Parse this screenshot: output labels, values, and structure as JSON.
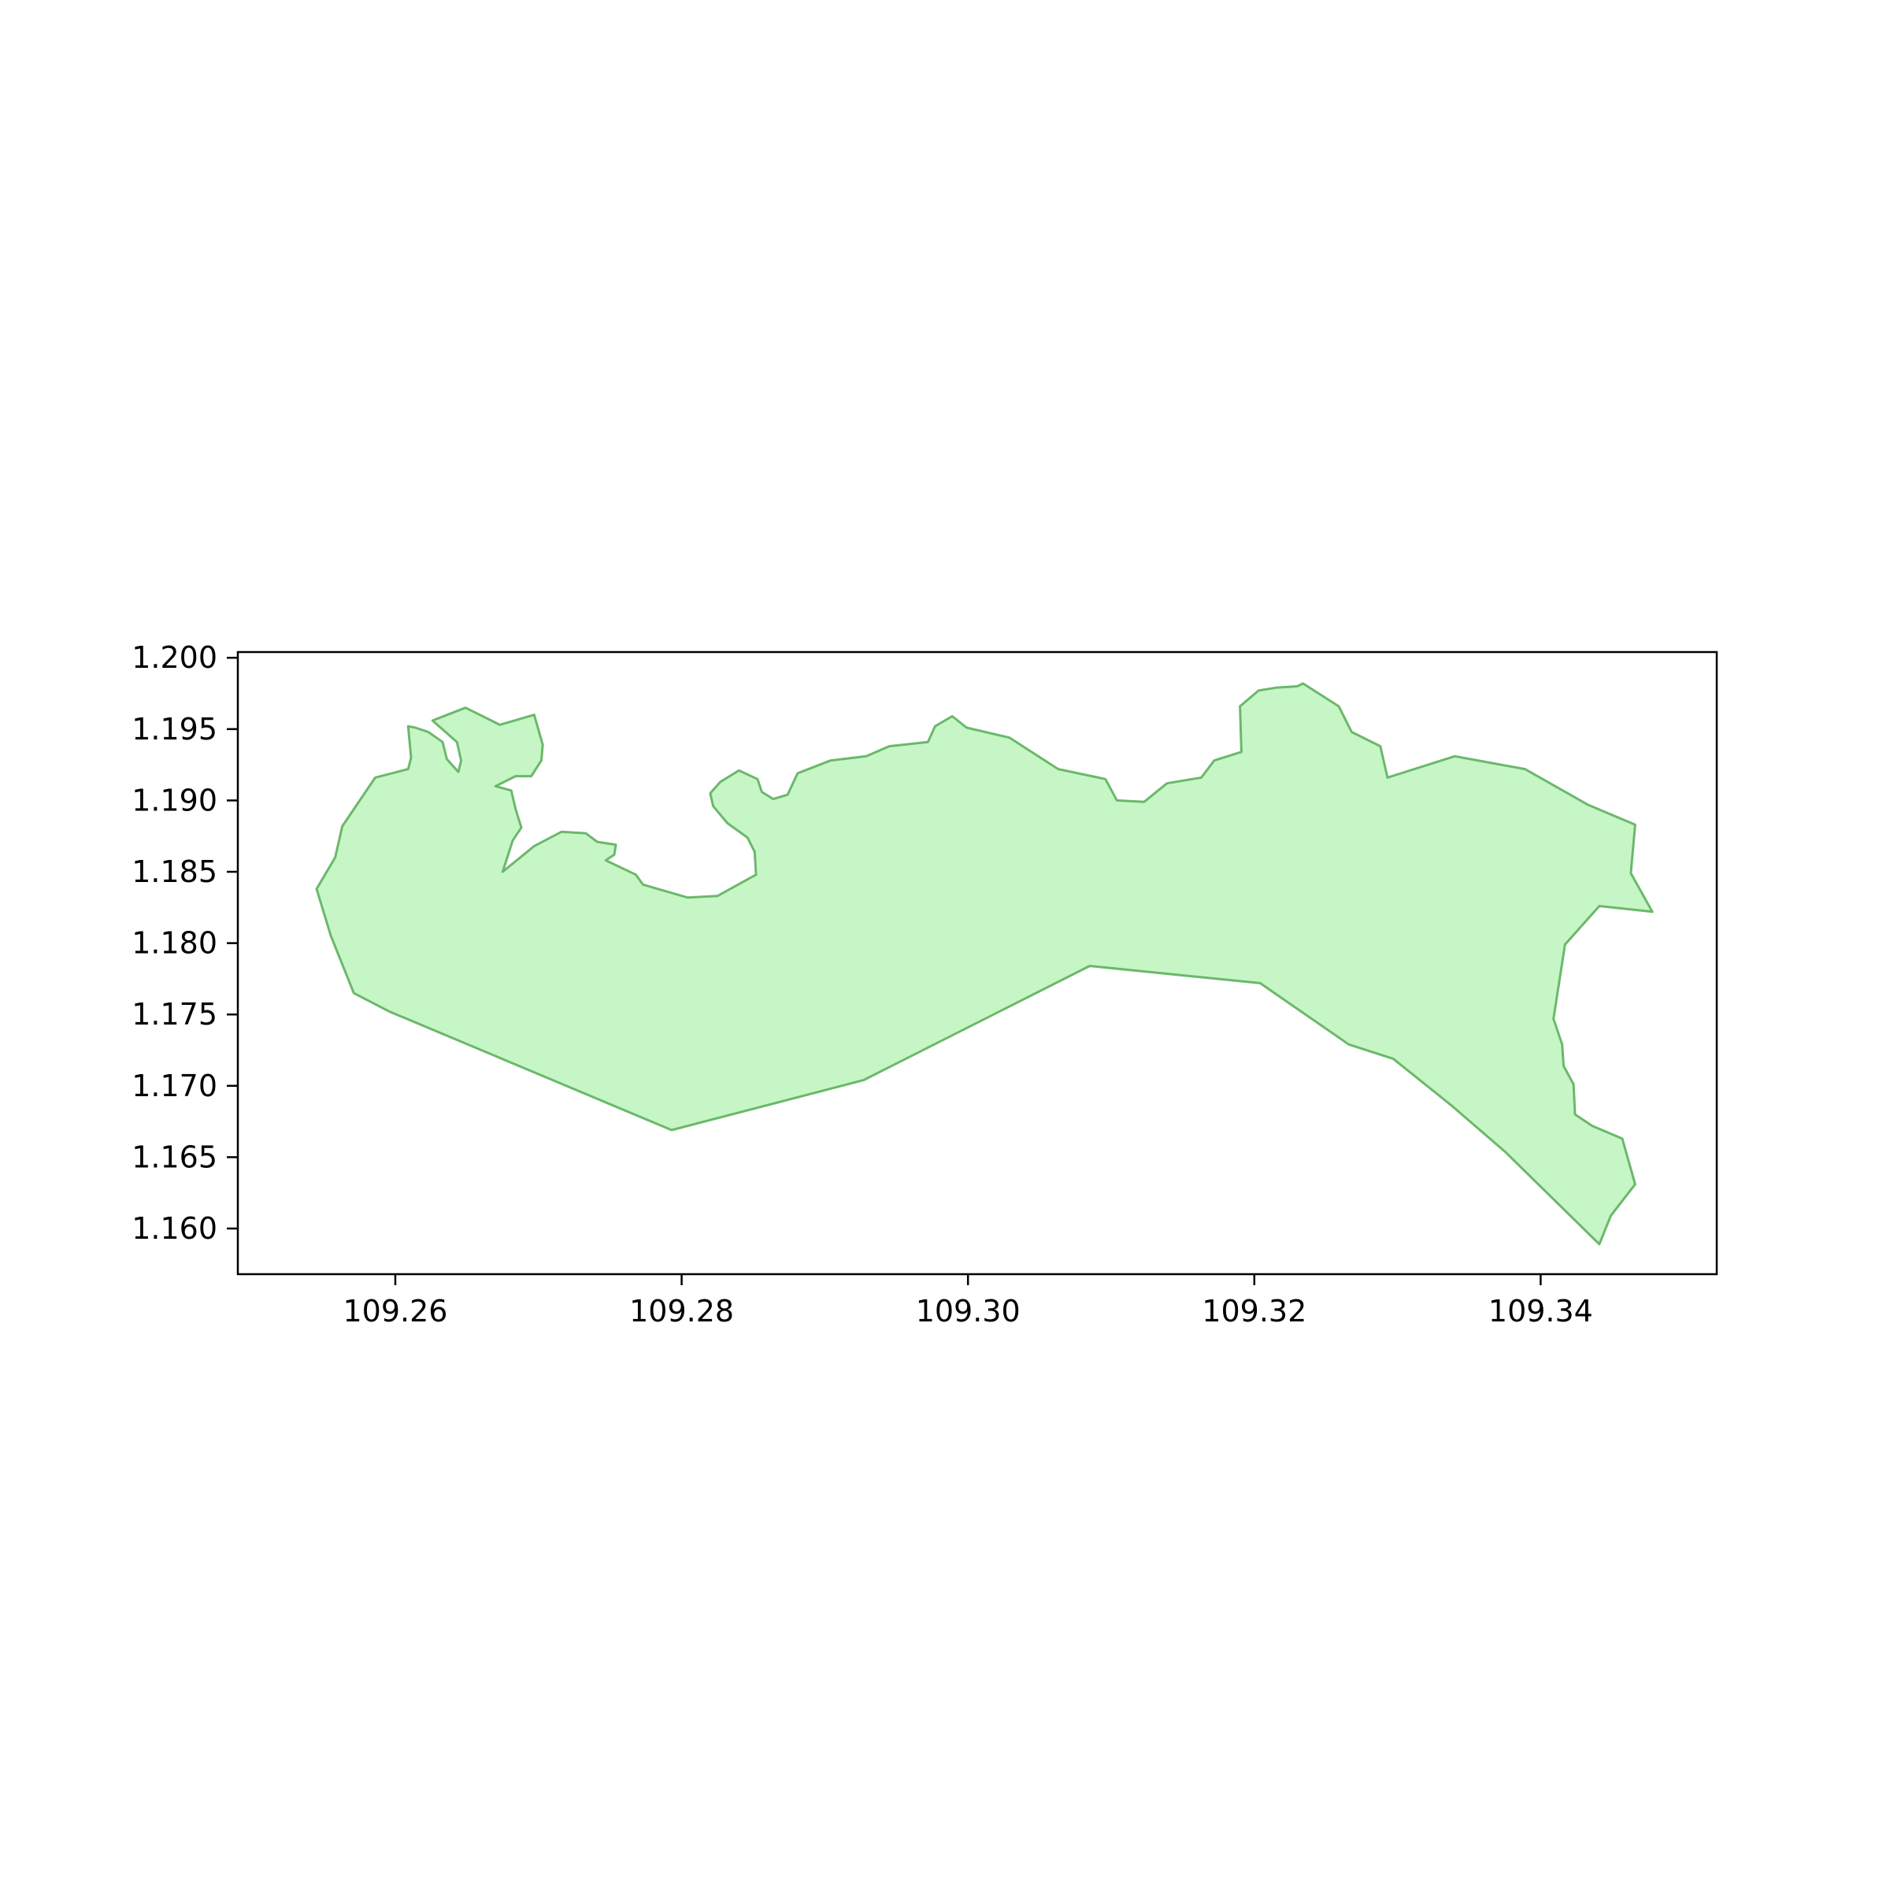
{
  "chart_data": {
    "type": "map",
    "title": "",
    "xlabel": "",
    "ylabel": "",
    "xlim": [
      109.249,
      109.3523
    ],
    "ylim": [
      1.1568,
      1.2004
    ],
    "grid": false,
    "legend": "none",
    "fill_color": "#c6f6c6",
    "edge_color": "#6bb86b",
    "x_ticks": [
      {
        "value": 109.26,
        "label": "109.26"
      },
      {
        "value": 109.28,
        "label": "109.28"
      },
      {
        "value": 109.3,
        "label": "109.30"
      },
      {
        "value": 109.32,
        "label": "109.32"
      },
      {
        "value": 109.34,
        "label": "109.34"
      }
    ],
    "y_ticks": [
      {
        "value": 1.16,
        "label": "1.160"
      },
      {
        "value": 1.165,
        "label": "1.165"
      },
      {
        "value": 1.17,
        "label": "1.170"
      },
      {
        "value": 1.175,
        "label": "1.175"
      },
      {
        "value": 1.18,
        "label": "1.180"
      },
      {
        "value": 1.185,
        "label": "1.185"
      },
      {
        "value": 1.19,
        "label": "1.190"
      },
      {
        "value": 1.195,
        "label": "1.195"
      },
      {
        "value": 1.2,
        "label": "1.200"
      }
    ],
    "polygon": [
      [
        109.2545,
        1.1838
      ],
      [
        109.2555,
        1.1805
      ],
      [
        109.2571,
        1.1765
      ],
      [
        109.2596,
        1.1752
      ],
      [
        109.2793,
        1.1669
      ],
      [
        109.2927,
        1.1704
      ],
      [
        109.3085,
        1.1784
      ],
      [
        109.3204,
        1.1772
      ],
      [
        109.3266,
        1.1729
      ],
      [
        109.3297,
        1.1719
      ],
      [
        109.3338,
        1.1686
      ],
      [
        109.3375,
        1.1654
      ],
      [
        109.3441,
        1.1589
      ],
      [
        109.3449,
        1.1609
      ],
      [
        109.3466,
        1.1631
      ],
      [
        109.3457,
        1.1663
      ],
      [
        109.3436,
        1.1672
      ],
      [
        109.3424,
        1.168
      ],
      [
        109.3423,
        1.1701
      ],
      [
        109.3416,
        1.1714
      ],
      [
        109.3415,
        1.1729
      ],
      [
        109.3409,
        1.1747
      ],
      [
        109.3417,
        1.1799
      ],
      [
        109.3441,
        1.1826
      ],
      [
        109.3478,
        1.1822
      ],
      [
        109.3463,
        1.1849
      ],
      [
        109.3466,
        1.1883
      ],
      [
        109.3433,
        1.1897
      ],
      [
        109.3389,
        1.1922
      ],
      [
        109.334,
        1.1931
      ],
      [
        109.3293,
        1.1916
      ],
      [
        109.3288,
        1.1938
      ],
      [
        109.3268,
        1.1948
      ],
      [
        109.3259,
        1.1966
      ],
      [
        109.3234,
        1.1982
      ],
      [
        109.323,
        1.198
      ],
      [
        109.3215,
        1.1979
      ],
      [
        109.3203,
        1.1977
      ],
      [
        109.319,
        1.1966
      ],
      [
        109.3191,
        1.1934
      ],
      [
        109.3172,
        1.1928
      ],
      [
        109.3163,
        1.1916
      ],
      [
        109.3139,
        1.1912
      ],
      [
        109.3123,
        1.1899
      ],
      [
        109.3104,
        1.19
      ],
      [
        109.3096,
        1.1915
      ],
      [
        109.3063,
        1.1922
      ],
      [
        109.3029,
        1.1944
      ],
      [
        109.2999,
        1.1951
      ],
      [
        109.2989,
        1.1959
      ],
      [
        109.2977,
        1.1952
      ],
      [
        109.2972,
        1.1941
      ],
      [
        109.2945,
        1.1938
      ],
      [
        109.2929,
        1.1931
      ],
      [
        109.2904,
        1.1928
      ],
      [
        109.2881,
        1.1919
      ],
      [
        109.2874,
        1.1904
      ],
      [
        109.2864,
        1.1901
      ],
      [
        109.2856,
        1.1906
      ],
      [
        109.2853,
        1.1915
      ],
      [
        109.284,
        1.1921
      ],
      [
        109.2827,
        1.1913
      ],
      [
        109.282,
        1.1905
      ],
      [
        109.2822,
        1.1896
      ],
      [
        109.2832,
        1.1884
      ],
      [
        109.2846,
        1.1874
      ],
      [
        109.2851,
        1.1864
      ],
      [
        109.2852,
        1.1848
      ],
      [
        109.2825,
        1.1833
      ],
      [
        109.2804,
        1.1832
      ],
      [
        109.2773,
        1.1841
      ],
      [
        109.2768,
        1.1848
      ],
      [
        109.2747,
        1.1858
      ],
      [
        109.2753,
        1.1862
      ],
      [
        109.2754,
        1.1869
      ],
      [
        109.2741,
        1.1871
      ],
      [
        109.2733,
        1.1877
      ],
      [
        109.2716,
        1.1878
      ],
      [
        109.2697,
        1.1868
      ],
      [
        109.2675,
        1.185
      ],
      [
        109.2682,
        1.1872
      ],
      [
        109.2688,
        1.1881
      ],
      [
        109.2684,
        1.1894
      ],
      [
        109.2681,
        1.1907
      ],
      [
        109.267,
        1.191
      ],
      [
        109.2684,
        1.1917
      ],
      [
        109.2695,
        1.1917
      ],
      [
        109.2702,
        1.1928
      ],
      [
        109.2703,
        1.1939
      ],
      [
        109.2697,
        1.196
      ],
      [
        109.2673,
        1.1953
      ],
      [
        109.2649,
        1.1965
      ],
      [
        109.2626,
        1.1956
      ],
      [
        109.2643,
        1.1941
      ],
      [
        109.2646,
        1.1928
      ],
      [
        109.2644,
        1.192
      ],
      [
        109.2636,
        1.1929
      ],
      [
        109.2633,
        1.1941
      ],
      [
        109.2623,
        1.1948
      ],
      [
        109.2614,
        1.1951
      ],
      [
        109.2609,
        1.1952
      ],
      [
        109.2611,
        1.193
      ],
      [
        109.2609,
        1.1922
      ],
      [
        109.2586,
        1.1916
      ],
      [
        109.2563,
        1.1882
      ],
      [
        109.2558,
        1.186
      ],
      [
        109.2545,
        1.1838
      ]
    ]
  }
}
